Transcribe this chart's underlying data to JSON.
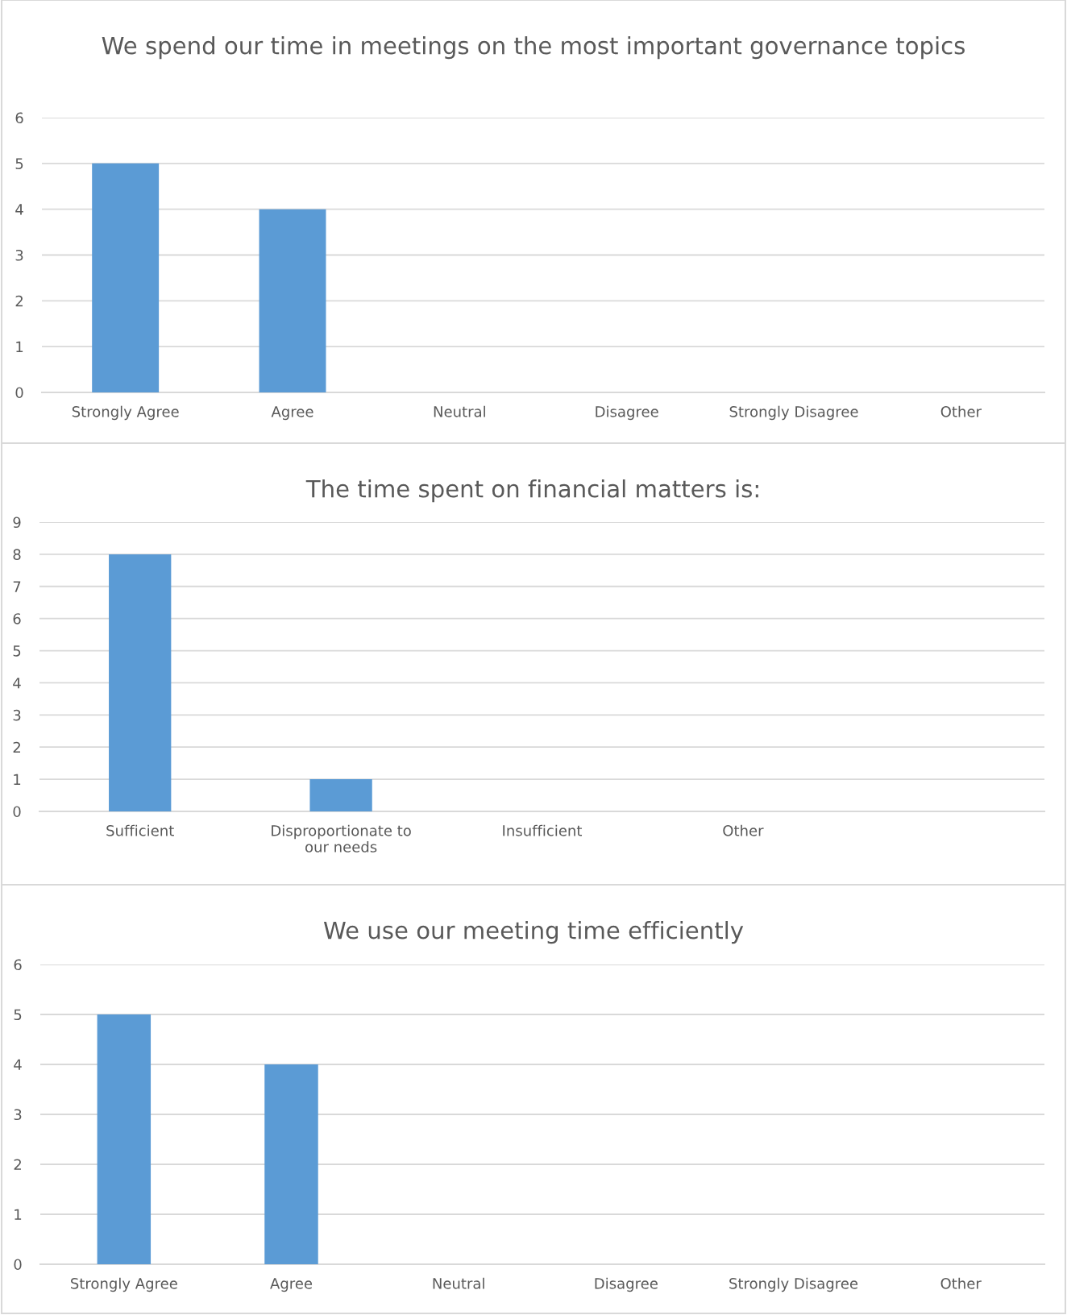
{
  "chart_data": [
    {
      "type": "bar",
      "title": "We spend our time in meetings on the most important governance topics",
      "categories": [
        "Strongly Agree",
        "Agree",
        "Neutral",
        "Disagree",
        "Strongly Disagree",
        "Other"
      ],
      "values": [
        5,
        4,
        0,
        0,
        0,
        0
      ],
      "color": "#5b9bd5",
      "ylim": [
        0,
        6
      ],
      "yticks": [
        0,
        1,
        2,
        3,
        4,
        5,
        6
      ],
      "grid": "y",
      "legend": false
    },
    {
      "type": "bar",
      "title": "The time spent on financial matters is:",
      "categories": [
        "Sufficient",
        "Disproportionate to our needs",
        "Insufficient",
        "Other",
        null
      ],
      "values": [
        8,
        1,
        0,
        0,
        0
      ],
      "color": "#5b9bd5",
      "ylim": [
        0,
        9
      ],
      "yticks": [
        0,
        1,
        2,
        3,
        4,
        5,
        6,
        7,
        8,
        9
      ],
      "grid": "y",
      "legend": false
    },
    {
      "type": "bar",
      "title": "We use our meeting time efficiently",
      "categories": [
        "Strongly Agree",
        "Agree",
        "Neutral",
        "Disagree",
        "Strongly Disagree",
        "Other"
      ],
      "values": [
        5,
        4,
        0,
        0,
        0,
        0
      ],
      "color": "#5b9bd5",
      "ylim": [
        0,
        6
      ],
      "yticks": [
        0,
        1,
        2,
        3,
        4,
        5,
        6
      ],
      "grid": "y",
      "legend": false
    }
  ]
}
